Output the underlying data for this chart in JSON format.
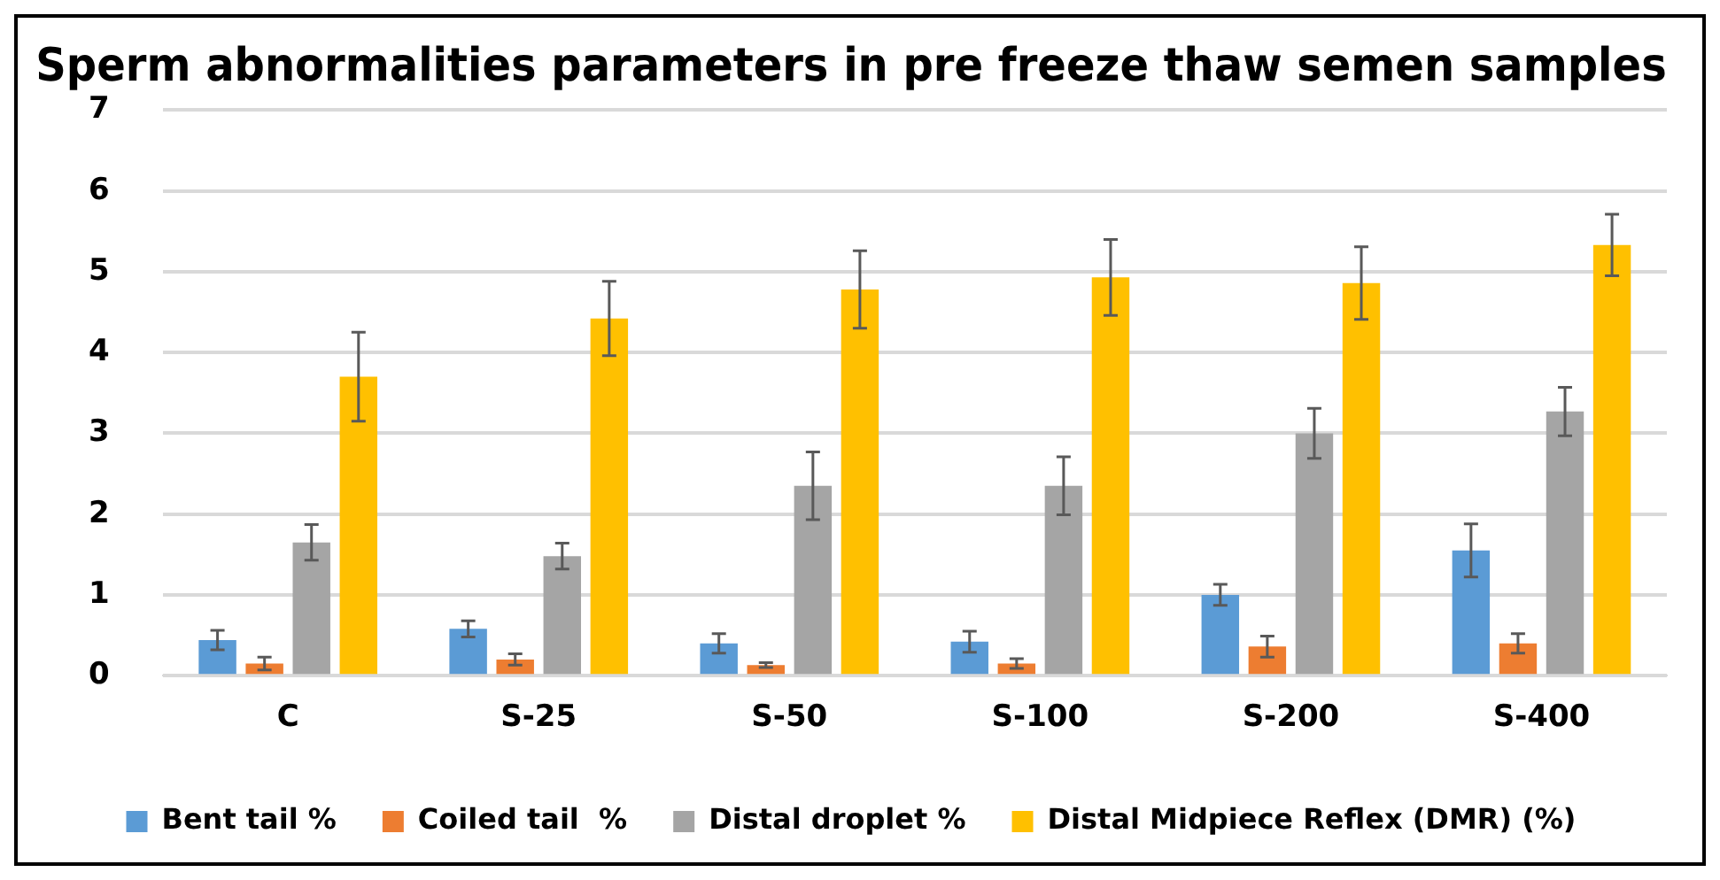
{
  "chart_data": {
    "type": "bar",
    "title": "Sperm abnormalities parameters in pre freeze thaw semen samples",
    "categories": [
      "C",
      "S-25",
      "S-50",
      "S-100",
      "S-200",
      "S-400"
    ],
    "series": [
      {
        "name": "Bent tail %",
        "color": "#5b9bd5",
        "values": [
          0.44,
          0.58,
          0.4,
          0.42,
          1.0,
          1.55
        ],
        "errors": [
          0.12,
          0.1,
          0.12,
          0.13,
          0.13,
          0.33
        ]
      },
      {
        "name": "Coiled tail  %",
        "color": "#ed7d31",
        "values": [
          0.15,
          0.2,
          0.13,
          0.15,
          0.36,
          0.4
        ],
        "errors": [
          0.08,
          0.07,
          0.03,
          0.06,
          0.13,
          0.12
        ]
      },
      {
        "name": "Distal droplet %",
        "color": "#a5a5a5",
        "values": [
          1.65,
          1.48,
          2.35,
          2.35,
          3.0,
          3.27
        ],
        "errors": [
          0.22,
          0.16,
          0.42,
          0.36,
          0.31,
          0.3
        ]
      },
      {
        "name": "Distal Midpiece Reflex (DMR) (%)",
        "color": "#ffc000",
        "values": [
          3.7,
          4.42,
          4.78,
          4.93,
          4.86,
          5.33
        ],
        "errors": [
          0.55,
          0.46,
          0.48,
          0.47,
          0.45,
          0.38
        ]
      }
    ],
    "ylim": [
      0,
      7
    ],
    "yticks": [
      0,
      1,
      2,
      3,
      4,
      5,
      6,
      7
    ],
    "grid": "y",
    "legend": "bottom"
  }
}
